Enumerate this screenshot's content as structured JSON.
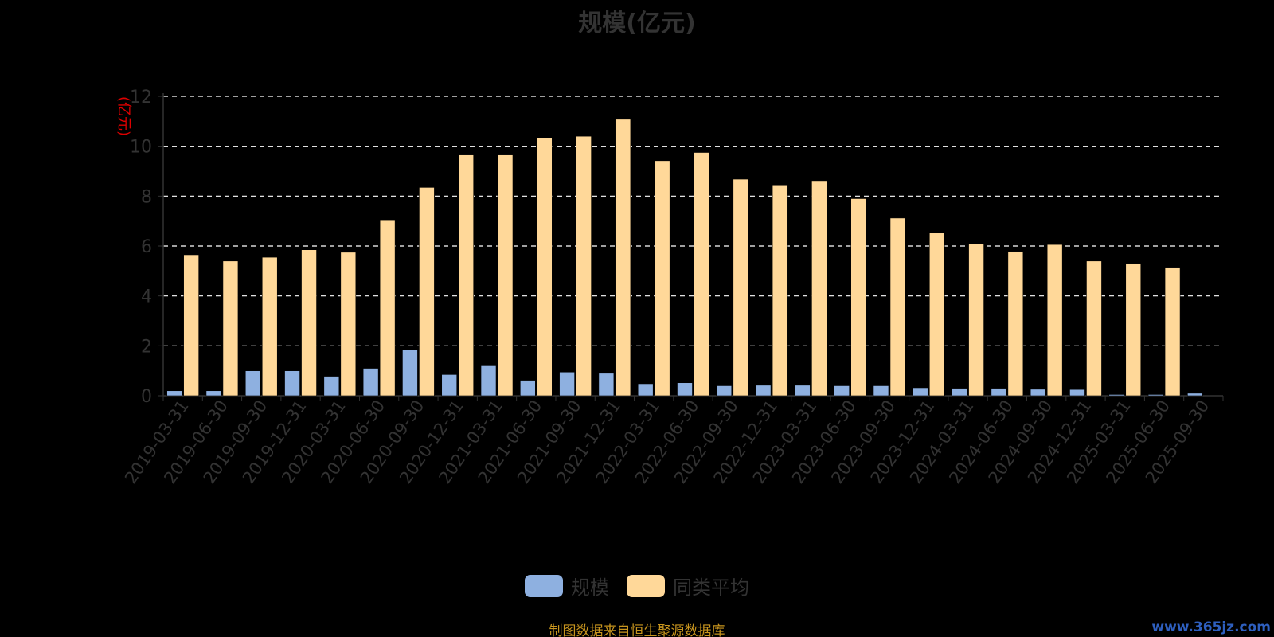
{
  "title": "规模(亿元)",
  "footer": "制图数据来自恒生聚源数据库",
  "watermark": "www.365jz.com",
  "colors": {
    "series_0": "#8eb0e0",
    "series_1": "#ffd899",
    "axis_text": "#333333",
    "y_unit": "#dd0000",
    "grid": "#ffffff",
    "footer": "#c8951e",
    "watermark": "#2e5fbf"
  },
  "chart_data": {
    "type": "bar",
    "title": "规模(亿元)",
    "ylabel": "(亿元)",
    "xlabel": "",
    "ylim": [
      0,
      12
    ],
    "yticks": [
      0,
      2,
      4,
      6,
      8,
      10,
      12
    ],
    "grid": true,
    "legend_position": "bottom-center",
    "categories": [
      "2019-03-31",
      "2019-06-30",
      "2019-09-30",
      "2019-12-31",
      "2020-03-31",
      "2020-06-30",
      "2020-09-30",
      "2020-12-31",
      "2021-03-31",
      "2021-06-30",
      "2021-09-30",
      "2021-12-31",
      "2022-03-31",
      "2022-06-30",
      "2022-09-30",
      "2022-12-31",
      "2023-03-31",
      "2023-06-30",
      "2023-09-30",
      "2023-12-31",
      "2024-03-31",
      "2024-06-30",
      "2024-09-30",
      "2024-12-31",
      "2025-03-31",
      "2025-06-30",
      "2025-09-30"
    ],
    "series": [
      {
        "name": "规模",
        "values": [
          0.2,
          0.2,
          1.0,
          1.0,
          0.78,
          1.1,
          1.85,
          0.85,
          1.2,
          0.62,
          0.95,
          0.9,
          0.48,
          0.52,
          0.4,
          0.42,
          0.42,
          0.4,
          0.4,
          0.32,
          0.3,
          0.3,
          0.26,
          0.25,
          0.05,
          0.05,
          0.1
        ]
      },
      {
        "name": "同类平均",
        "values": [
          5.65,
          5.4,
          5.55,
          5.85,
          5.75,
          7.05,
          8.35,
          9.65,
          9.65,
          10.35,
          10.4,
          11.08,
          9.42,
          9.75,
          8.68,
          8.45,
          8.62,
          7.9,
          7.12,
          6.52,
          6.08,
          5.78,
          6.06,
          5.4,
          5.3,
          5.15,
          null
        ]
      }
    ]
  }
}
